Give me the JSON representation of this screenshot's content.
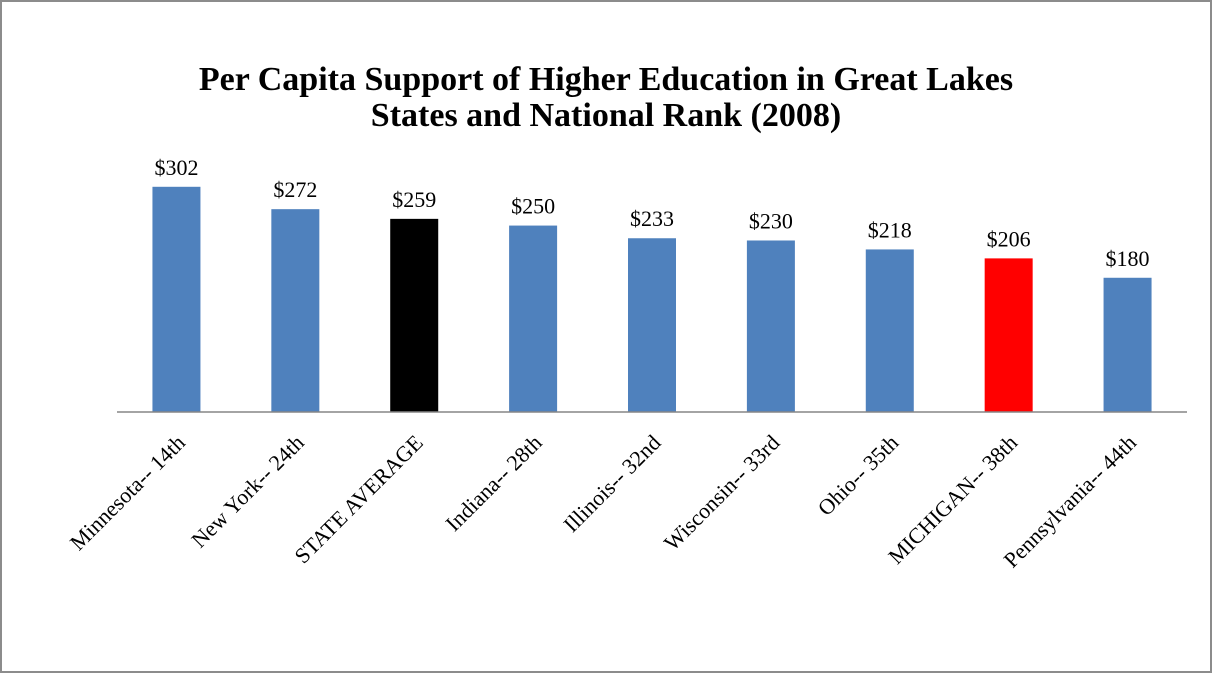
{
  "chart_data": {
    "type": "bar",
    "title": "Per Capita Support of Higher Education in Great Lakes States and National Rank (2008)",
    "categories": [
      "Minnesota-- 14th",
      "New York-- 24th",
      "STATE AVERAGE",
      "Indiana-- 28th",
      "Illinois-- 32nd",
      "Wisconsin-- 33rd",
      "Ohio-- 35th",
      "MICHIGAN-- 38th",
      "Pennsylvania-- 44th"
    ],
    "values": [
      302,
      272,
      259,
      250,
      233,
      230,
      218,
      206,
      180
    ],
    "value_labels": [
      "$302",
      "$272",
      "$259",
      "$250",
      "$233",
      "$230",
      "$218",
      "$206",
      "$180"
    ],
    "colors": [
      "#4f81bd",
      "#4f81bd",
      "#000000",
      "#4f81bd",
      "#4f81bd",
      "#4f81bd",
      "#4f81bd",
      "#ff0000",
      "#4f81bd"
    ],
    "ylim": [
      0,
      350
    ]
  }
}
